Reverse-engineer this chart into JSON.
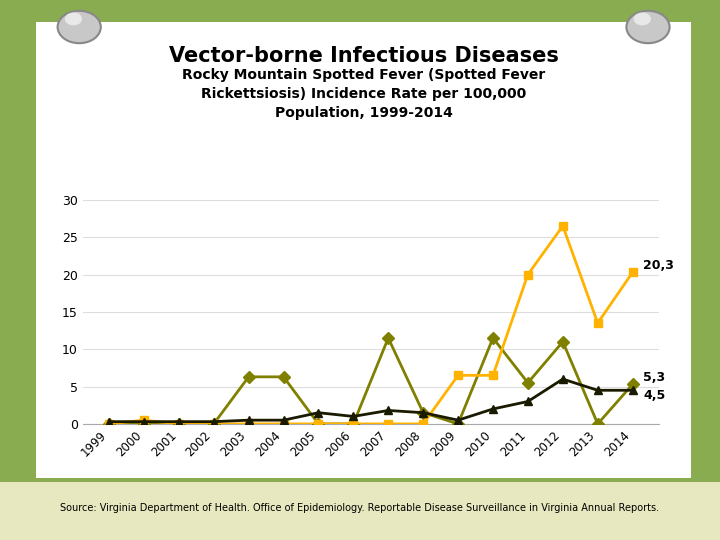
{
  "title_main": "Vector-borne Infectious Diseases",
  "title_sub": "Rocky Mountain Spotted Fever (Spotted Fever\nRickettsiosis) Incidence Rate per 100,000\nPopulation, 1999-2014",
  "source": "Source: Virginia Department of Health. Office of Epidemiology. Reportable Disease Surveillance in Virginia Annual Reports.",
  "years": [
    1999,
    2000,
    2001,
    2002,
    2003,
    2004,
    2005,
    2006,
    2007,
    2008,
    2009,
    2010,
    2011,
    2012,
    2013,
    2014
  ],
  "greene": [
    0.0,
    0.0,
    0.0,
    0.0,
    6.3,
    6.3,
    0.0,
    0.0,
    11.5,
    1.5,
    0.0,
    11.5,
    5.5,
    11.0,
    0.0,
    5.3
  ],
  "nelson": [
    0.0,
    0.5,
    0.0,
    0.0,
    0.0,
    0.0,
    0.0,
    0.0,
    0.0,
    0.0,
    6.5,
    6.5,
    20.0,
    26.5,
    13.5,
    20.3
  ],
  "virginia": [
    0.3,
    0.3,
    0.3,
    0.3,
    0.5,
    0.5,
    1.5,
    1.0,
    1.8,
    1.5,
    0.5,
    2.0,
    3.0,
    6.0,
    4.5,
    4.5
  ],
  "greene_color": "#808000",
  "nelson_color": "#FFB300",
  "virginia_color": "#1a1a00",
  "ylim": [
    0,
    30
  ],
  "yticks": [
    0,
    5,
    10,
    15,
    20,
    25,
    30
  ],
  "bg_outer": "#8aac50",
  "bg_paper": "#ffffff",
  "annotation_nelson": "20,3",
  "annotation_greene": "5,3",
  "annotation_virginia": "4,5",
  "pin_color": "#c8c8c8",
  "pin_edge": "#888888",
  "source_bg": "#e8e8c0"
}
